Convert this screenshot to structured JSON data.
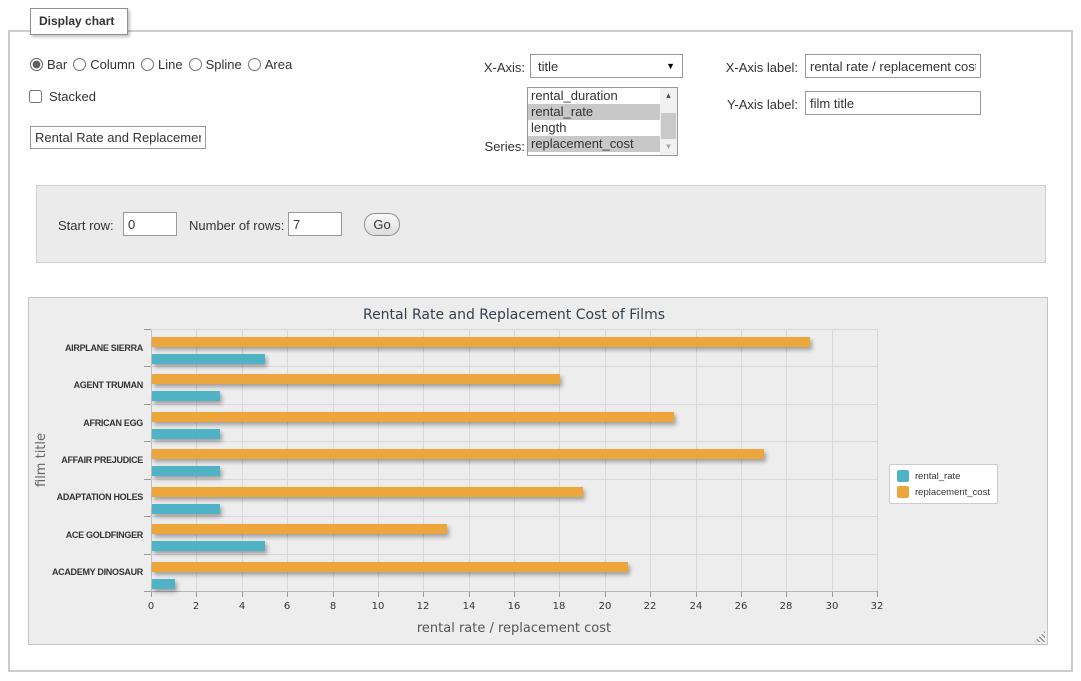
{
  "fieldset": {
    "legend": "Display chart"
  },
  "chart_type": {
    "options": [
      {
        "label": "Bar",
        "selected": true
      },
      {
        "label": "Column",
        "selected": false
      },
      {
        "label": "Line",
        "selected": false
      },
      {
        "label": "Spline",
        "selected": false
      },
      {
        "label": "Area",
        "selected": false
      }
    ]
  },
  "stacked": {
    "label": "Stacked",
    "checked": false
  },
  "title_input": {
    "value": "Rental Rate and Replacement Cost of Films"
  },
  "x_axis": {
    "label": "X-Axis:",
    "value": "title"
  },
  "series_select": {
    "label": "Series:",
    "options": [
      {
        "label": "rental_duration",
        "selected": false
      },
      {
        "label": "rental_rate",
        "selected": true
      },
      {
        "label": "length",
        "selected": false
      },
      {
        "label": "replacement_cost",
        "selected": true
      }
    ]
  },
  "x_axis_label": {
    "label": "X-Axis label:",
    "value": "rental rate / replacement cost"
  },
  "y_axis_label": {
    "label": "Y-Axis label:",
    "value": "film title"
  },
  "rows_panel": {
    "start_row_label": "Start row:",
    "start_row_value": "0",
    "num_rows_label": "Number of rows:",
    "num_rows_value": "7",
    "go_label": "Go"
  },
  "chart_data": {
    "type": "bar",
    "title": "Rental Rate and Replacement Cost of Films",
    "categories": [
      "AIRPLANE SIERRA",
      "AGENT TRUMAN",
      "AFRICAN EGG",
      "AFFAIR PREJUDICE",
      "ADAPTATION HOLES",
      "ACE GOLDFINGER",
      "ACADEMY DINOSAUR"
    ],
    "series": [
      {
        "name": "rental_rate",
        "color": "#4FB2C5",
        "values": [
          4.99,
          2.99,
          2.99,
          2.99,
          2.99,
          4.99,
          0.99
        ]
      },
      {
        "name": "replacement_cost",
        "color": "#EDA63B",
        "values": [
          28.99,
          17.99,
          22.99,
          26.99,
          18.99,
          12.99,
          20.99
        ]
      }
    ],
    "xlabel": "rental rate / replacement cost",
    "ylabel": "film title",
    "xlim": [
      0,
      32
    ],
    "xtick_step": 2,
    "legend_position": "right",
    "grid": true
  }
}
